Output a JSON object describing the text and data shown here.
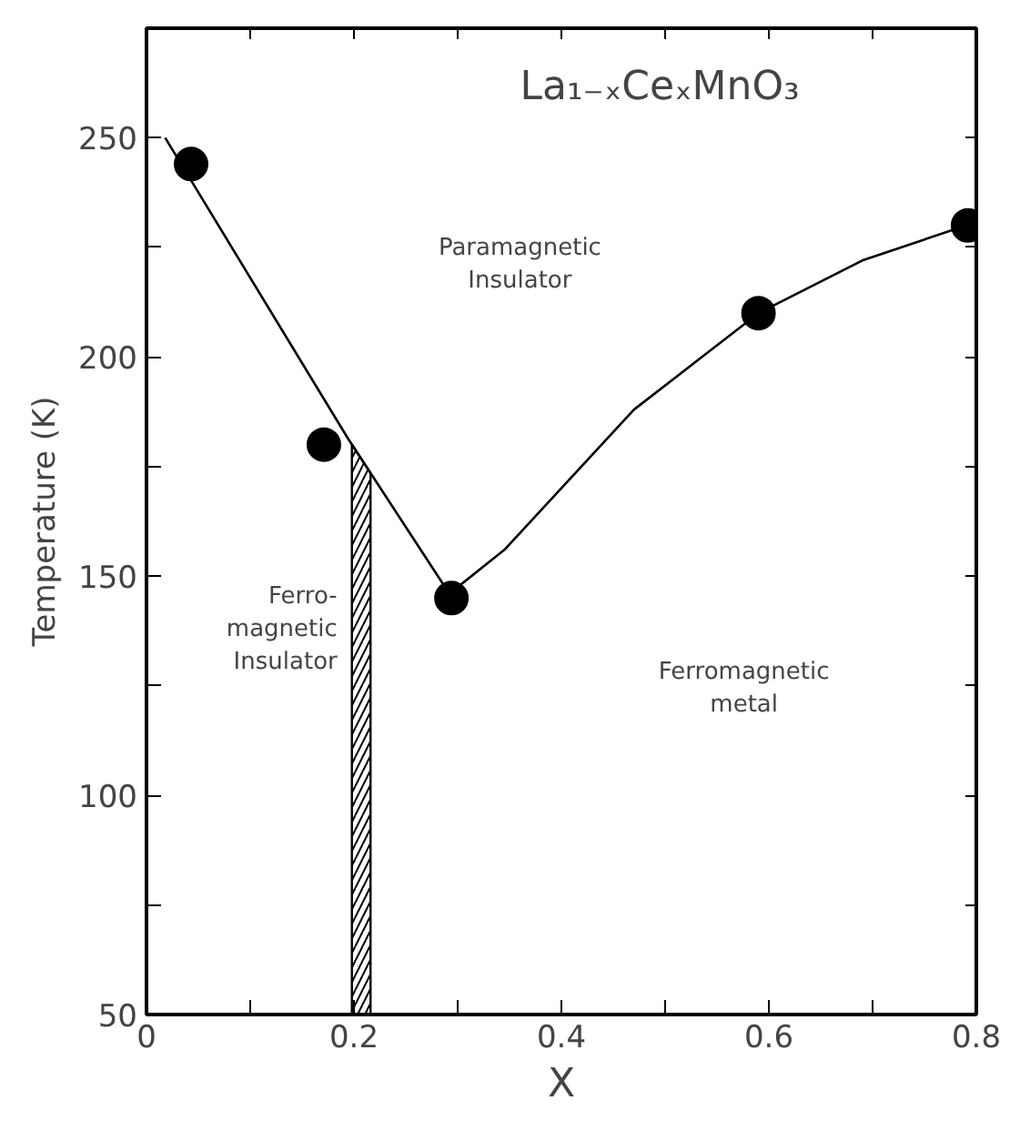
{
  "chart_data": {
    "type": "scatter",
    "title": "La₁₋ₓCeₓMnO₃",
    "xlabel": "X",
    "ylabel": "Temperature (K)",
    "xlim": [
      0,
      0.8
    ],
    "ylim": [
      50,
      275
    ],
    "xticks": [
      0,
      {
        "value": 0.1,
        "label": null
      },
      0.2,
      {
        "value": 0.3,
        "label": null
      },
      0.4,
      {
        "value": 0.5,
        "label": null
      },
      0.6,
      {
        "value": 0.7,
        "label": null
      },
      0.8
    ],
    "yticks": [
      50,
      {
        "value": 75,
        "label": null
      },
      100,
      {
        "value": 125,
        "label": null
      },
      150,
      {
        "value": 175,
        "label": null
      },
      200,
      {
        "value": 225,
        "label": null
      },
      250
    ],
    "grid": false,
    "series": [
      {
        "color": "#000000",
        "marker": "circle",
        "x": [
          0.043,
          0.171,
          0.294,
          0.59,
          0.792
        ],
        "values": [
          244,
          180,
          145,
          210,
          230
        ]
      },
      {
        "type": "line",
        "color": "#000000",
        "line_style": "solid",
        "marker": "none",
        "x": [
          0.018,
          0.194,
          0.292,
          0.345,
          0.47,
          0.59,
          0.69,
          0.79
        ],
        "values": [
          250,
          181.5,
          146,
          156,
          188,
          210,
          222,
          230
        ]
      }
    ],
    "bands": [
      {
        "axis": "x",
        "from": 0.198,
        "to": 0.216,
        "color": "#000000"
      }
    ],
    "annotations": [
      "Paramagnetic\nInsulator",
      "Ferro-\nmagnetic\nInsulator",
      "Ferromagnetic\nmetal"
    ]
  }
}
